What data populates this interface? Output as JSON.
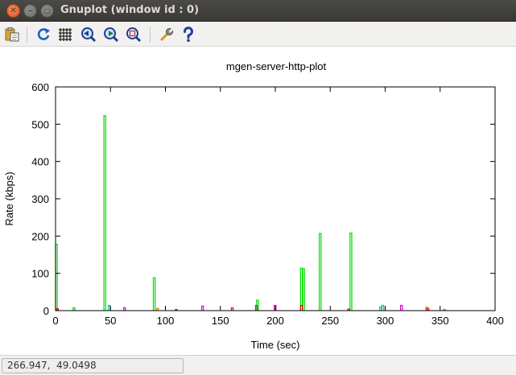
{
  "window": {
    "title": "Gnuplot (window id : 0)"
  },
  "toolbar": {
    "buttons": [
      {
        "name": "copy-to-clipboard-icon"
      },
      {
        "name": "replot-icon"
      },
      {
        "name": "grid-icon"
      },
      {
        "name": "zoom-previous-icon"
      },
      {
        "name": "zoom-next-icon"
      },
      {
        "name": "autoscale-icon"
      },
      {
        "name": "configure-icon"
      },
      {
        "name": "help-icon"
      }
    ]
  },
  "status": {
    "coords": "266.947,  49.0498"
  },
  "chart_data": {
    "type": "bar",
    "title": "mgen-server-http-plot",
    "xlabel": "Time (sec)",
    "ylabel": "Rate (kbps)",
    "xlim": [
      0,
      400
    ],
    "ylim": [
      0,
      600
    ],
    "xticks": [
      0,
      50,
      100,
      150,
      200,
      250,
      300,
      350,
      400
    ],
    "yticks": [
      0,
      100,
      200,
      300,
      400,
      500,
      600
    ],
    "grid": false,
    "legend": "none",
    "series": [
      {
        "color": "#00dd00",
        "bars": [
          {
            "x": 0,
            "y": 178
          },
          {
            "x": 16,
            "y": 8
          },
          {
            "x": 44,
            "y": 523
          },
          {
            "x": 89,
            "y": 88
          },
          {
            "x": 183,
            "y": 28
          },
          {
            "x": 223,
            "y": 114
          },
          {
            "x": 225,
            "y": 112
          },
          {
            "x": 240,
            "y": 207
          },
          {
            "x": 268,
            "y": 208
          },
          {
            "x": 295,
            "y": 10
          }
        ]
      },
      {
        "color": "#dd00dd",
        "bars": [
          {
            "x": 62,
            "y": 8
          },
          {
            "x": 133,
            "y": 12
          },
          {
            "x": 182,
            "y": 14
          },
          {
            "x": 199,
            "y": 14
          },
          {
            "x": 314,
            "y": 14
          }
        ]
      },
      {
        "color": "#00bbbb",
        "bars": [
          {
            "x": 48,
            "y": 14
          },
          {
            "x": 297,
            "y": 14
          },
          {
            "x": 353,
            "y": 3
          }
        ]
      },
      {
        "color": "#dd0000",
        "bars": [
          {
            "x": 1,
            "y": 5
          },
          {
            "x": 109,
            "y": 3
          },
          {
            "x": 160,
            "y": 7
          },
          {
            "x": 223,
            "y": 14
          },
          {
            "x": 266,
            "y": 4
          },
          {
            "x": 338,
            "y": 6
          }
        ]
      },
      {
        "color": "#c08000",
        "bars": [
          {
            "x": 92,
            "y": 6
          },
          {
            "x": 337,
            "y": 9
          }
        ]
      }
    ]
  }
}
